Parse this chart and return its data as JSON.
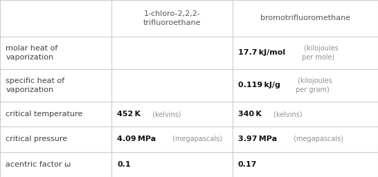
{
  "col_headers": [
    "",
    "1-chloro-2,2,2-\ntrifluoroethane",
    "bromotrifluoromethane"
  ],
  "rows": [
    {
      "label": "molar heat of\nvaporization",
      "col1_bold": "",
      "col1_light": "",
      "col2_bold": "17.7 kJ/mol",
      "col2_light": " (kilojoules\nper mole)"
    },
    {
      "label": "specific heat of\nvaporization",
      "col1_bold": "",
      "col1_light": "",
      "col2_bold": "0.119 kJ/g",
      "col2_light": " (kilojoules\nper gram)"
    },
    {
      "label": "critical temperature",
      "col1_bold": "452 K",
      "col1_light": " (kelvins)",
      "col2_bold": "340 K",
      "col2_light": " (kelvins)"
    },
    {
      "label": "critical pressure",
      "col1_bold": "4.09 MPa",
      "col1_light": " (megapascals)",
      "col2_bold": "3.97 MPa",
      "col2_light": " (megapascals)"
    },
    {
      "label": "acentric factor ω",
      "col1_bold": "0.1",
      "col1_light": "",
      "col2_bold": "0.17",
      "col2_light": ""
    }
  ],
  "bg_color": "#ffffff",
  "grid_color": "#cccccc",
  "text_color": "#404040",
  "light_text_color": "#909090",
  "bold_text_color": "#111111",
  "header_text_color": "#555555",
  "figsize": [
    5.46,
    2.56
  ],
  "dpi": 100
}
